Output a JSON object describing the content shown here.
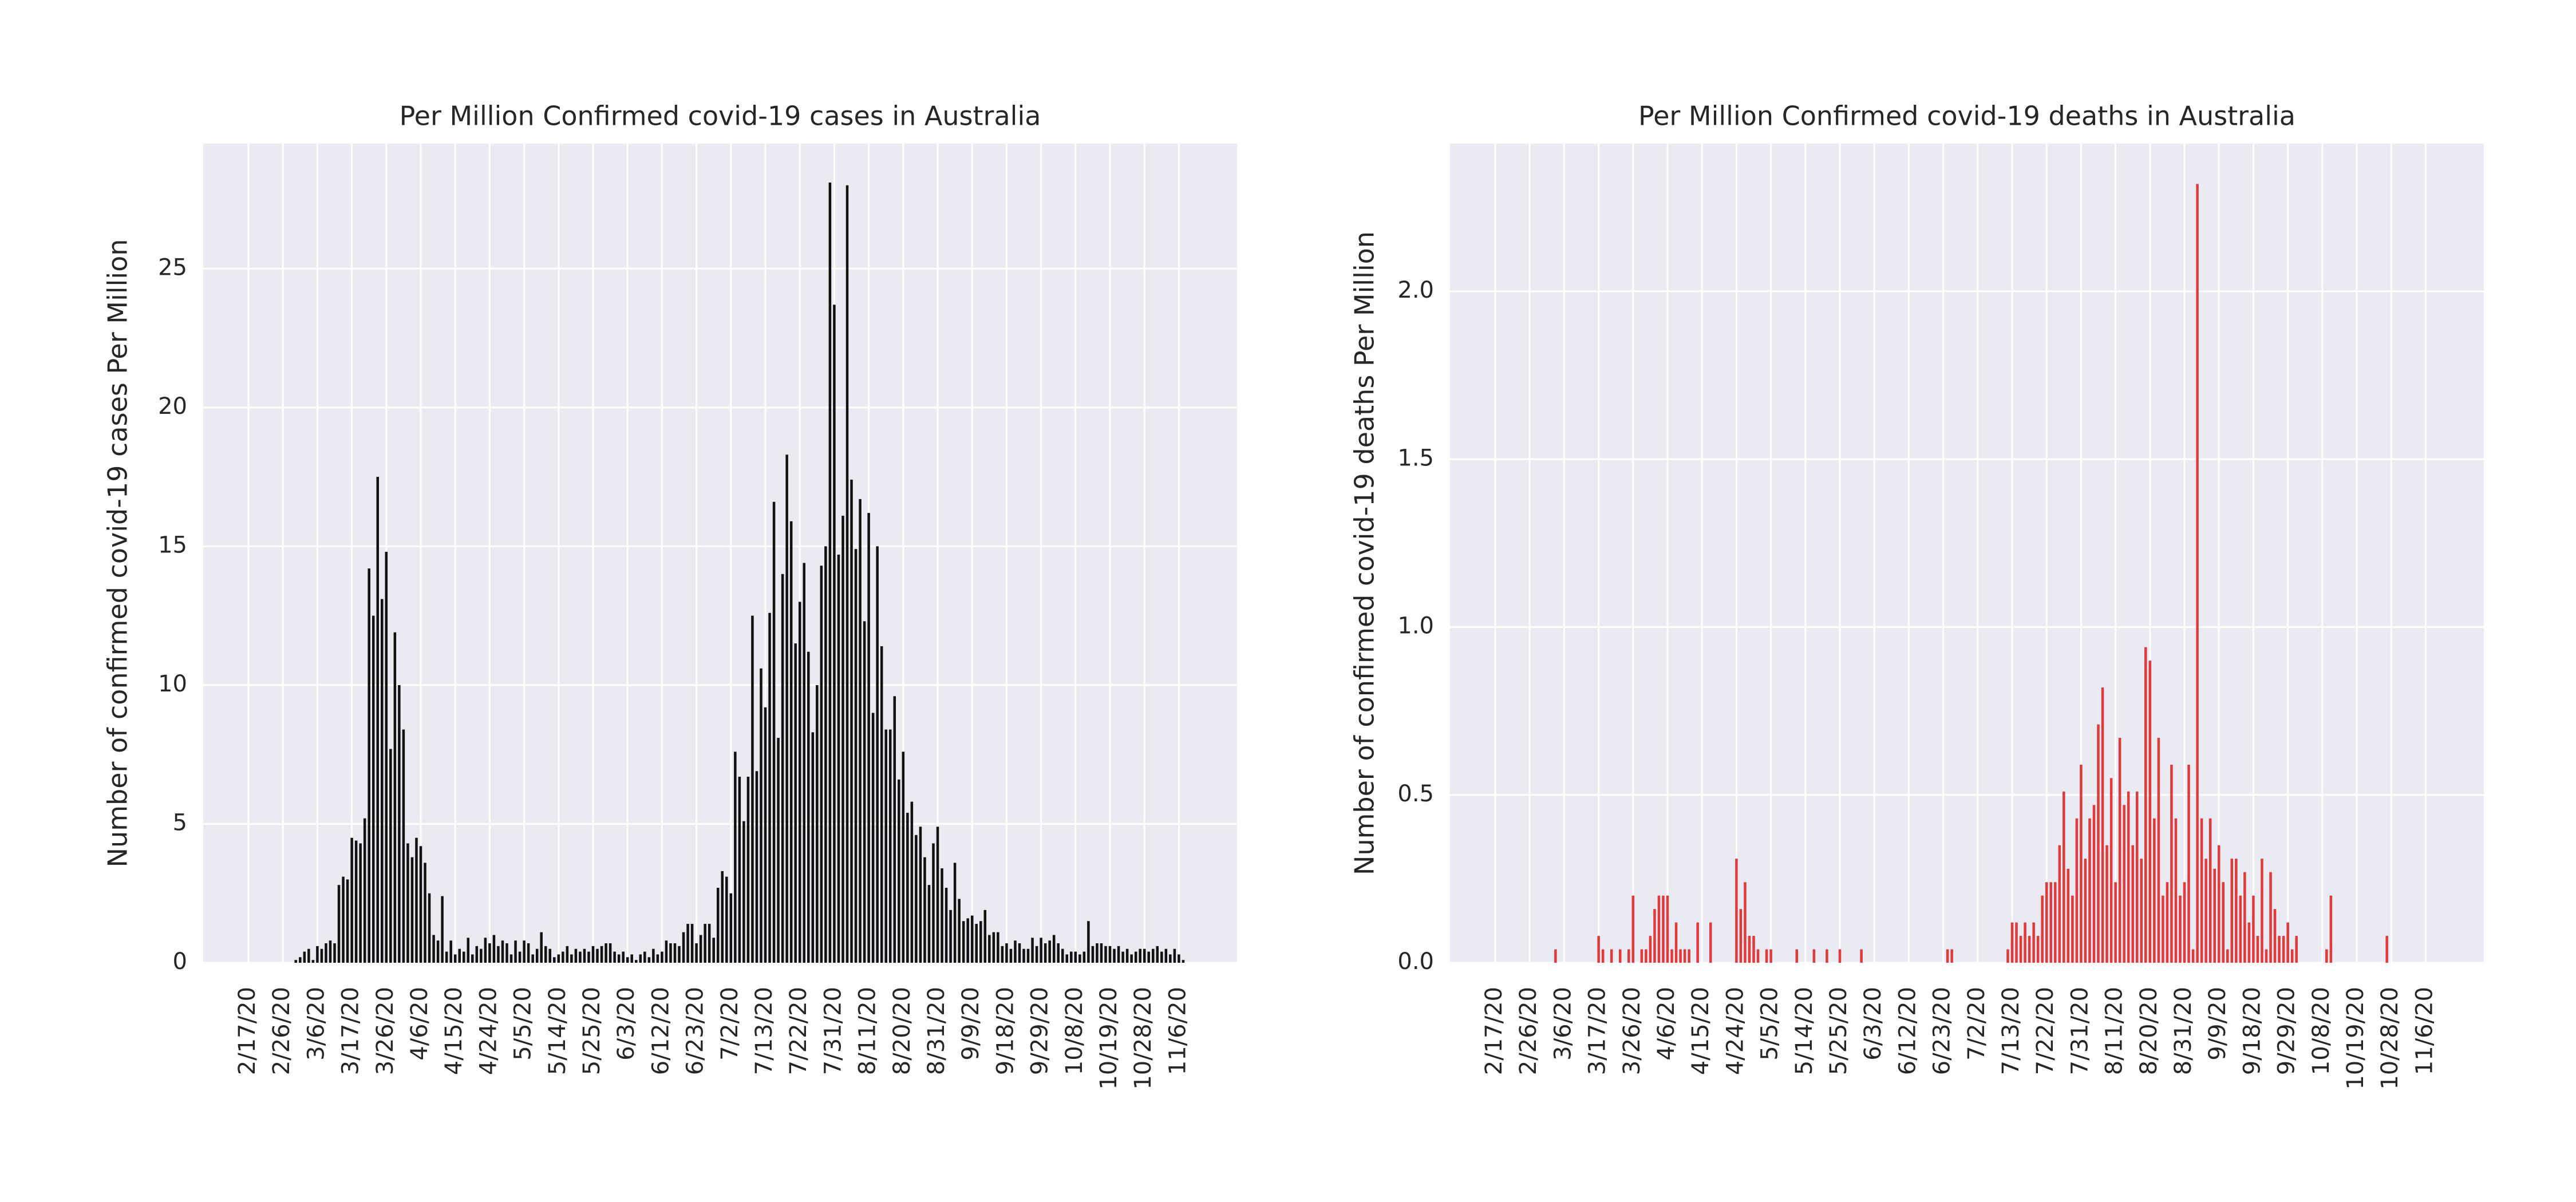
{
  "chart_data": [
    {
      "type": "bar",
      "title": "Per Million Confirmed covid-19 cases in Australia",
      "ylabel": "Number of confirmed covid-19 cases Per Million",
      "color": "#111111",
      "grid": true,
      "ylim": [
        0,
        29.5
      ],
      "yticks": [
        0,
        5,
        10,
        15,
        20,
        25
      ],
      "categories": [
        null,
        null,
        null,
        null,
        null,
        null,
        null,
        null,
        null,
        null,
        "2/17/20",
        null,
        null,
        null,
        null,
        null,
        null,
        null,
        "2/26/20",
        null,
        null,
        null,
        null,
        null,
        null,
        null,
        "3/6/20",
        null,
        null,
        null,
        null,
        null,
        null,
        null,
        "3/17/20",
        null,
        null,
        null,
        null,
        null,
        null,
        null,
        "3/26/20",
        null,
        null,
        null,
        null,
        null,
        null,
        null,
        "4/6/20",
        null,
        null,
        null,
        null,
        null,
        null,
        null,
        "4/15/20",
        null,
        null,
        null,
        null,
        null,
        null,
        null,
        "4/24/20",
        null,
        null,
        null,
        null,
        null,
        null,
        null,
        "5/5/20",
        null,
        null,
        null,
        null,
        null,
        null,
        null,
        "5/14/20",
        null,
        null,
        null,
        null,
        null,
        null,
        null,
        "5/25/20",
        null,
        null,
        null,
        null,
        null,
        null,
        null,
        "6/3/20",
        null,
        null,
        null,
        null,
        null,
        null,
        null,
        "6/12/20",
        null,
        null,
        null,
        null,
        null,
        null,
        null,
        "6/23/20",
        null,
        null,
        null,
        null,
        null,
        null,
        null,
        "7/2/20",
        null,
        null,
        null,
        null,
        null,
        null,
        null,
        "7/13/20",
        null,
        null,
        null,
        null,
        null,
        null,
        null,
        "7/22/20",
        null,
        null,
        null,
        null,
        null,
        null,
        null,
        "7/31/20",
        null,
        null,
        null,
        null,
        null,
        null,
        null,
        "8/11/20",
        null,
        null,
        null,
        null,
        null,
        null,
        null,
        "8/20/20",
        null,
        null,
        null,
        null,
        null,
        null,
        null,
        "8/31/20",
        null,
        null,
        null,
        null,
        null,
        null,
        null,
        "9/9/20",
        null,
        null,
        null,
        null,
        null,
        null,
        null,
        "9/18/20",
        null,
        null,
        null,
        null,
        null,
        null,
        null,
        "9/29/20",
        null,
        null,
        null,
        null,
        null,
        null,
        null,
        "10/8/20",
        null,
        null,
        null,
        null,
        null,
        null,
        null,
        "10/19/20",
        null,
        null,
        null,
        null,
        null,
        null,
        null,
        "10/28/20",
        null,
        null,
        null,
        null,
        null,
        null,
        null,
        "11/6/20",
        null,
        null,
        null,
        null,
        null,
        null,
        null,
        null,
        null,
        null,
        null,
        null,
        null
      ],
      "values": [
        0,
        0,
        0,
        0,
        0,
        0,
        0,
        0,
        0,
        0,
        0,
        0,
        0,
        0,
        0,
        0,
        0,
        0,
        0,
        0,
        0,
        0.1,
        0.2,
        0.4,
        0.5,
        0.1,
        0.6,
        0.5,
        0.7,
        0.8,
        0.7,
        2.8,
        3.1,
        3.0,
        4.5,
        4.4,
        4.3,
        5.2,
        14.2,
        12.5,
        17.5,
        13.1,
        14.8,
        7.7,
        11.9,
        10.0,
        8.4,
        4.3,
        3.8,
        4.5,
        4.2,
        3.6,
        2.5,
        1.0,
        0.8,
        2.4,
        0.4,
        0.8,
        0.3,
        0.5,
        0.4,
        0.9,
        0.3,
        0.6,
        0.5,
        0.9,
        0.7,
        1.0,
        0.6,
        0.8,
        0.7,
        0.3,
        0.8,
        0.4,
        0.8,
        0.7,
        0.3,
        0.5,
        1.1,
        0.6,
        0.5,
        0.2,
        0.3,
        0.4,
        0.6,
        0.3,
        0.5,
        0.4,
        0.5,
        0.4,
        0.6,
        0.5,
        0.6,
        0.7,
        0.7,
        0.4,
        0.3,
        0.4,
        0.2,
        0.3,
        0.1,
        0.3,
        0.4,
        0.2,
        0.5,
        0.3,
        0.4,
        0.8,
        0.7,
        0.7,
        0.6,
        1.1,
        1.4,
        1.4,
        0.7,
        1.0,
        1.4,
        1.4,
        0.9,
        2.7,
        3.3,
        3.1,
        2.5,
        7.6,
        6.7,
        5.1,
        6.7,
        12.5,
        6.9,
        10.6,
        9.2,
        12.6,
        16.6,
        8.1,
        14.0,
        18.3,
        15.9,
        11.5,
        13.0,
        14.4,
        11.2,
        8.3,
        10.0,
        14.3,
        15.0,
        28.1,
        23.7,
        14.7,
        16.1,
        28.0,
        17.4,
        14.9,
        16.7,
        12.3,
        16.2,
        9.0,
        15.0,
        11.4,
        8.4,
        8.4,
        9.6,
        6.6,
        7.6,
        5.4,
        5.8,
        4.6,
        4.9,
        3.8,
        2.8,
        4.3,
        4.9,
        3.4,
        2.7,
        1.9,
        3.6,
        2.3,
        1.5,
        1.6,
        1.7,
        1.4,
        1.5,
        1.9,
        1.0,
        1.1,
        1.1,
        0.6,
        0.7,
        0.5,
        0.8,
        0.7,
        0.5,
        0.5,
        0.9,
        0.6,
        0.9,
        0.7,
        0.8,
        1.0,
        0.7,
        0.5,
        0.3,
        0.4,
        0.4,
        0.3,
        0.4,
        1.5,
        0.6,
        0.7,
        0.7,
        0.6,
        0.6,
        0.5,
        0.6,
        0.4,
        0.5,
        0.3,
        0.4,
        0.5,
        0.5,
        0.4,
        0.5,
        0.6,
        0.4,
        0.5,
        0.3,
        0.5,
        0.3,
        0.1,
        0,
        0,
        0,
        0,
        0,
        0,
        0,
        0,
        0,
        0,
        0,
        0
      ]
    },
    {
      "type": "bar",
      "title": "Per Million Confirmed covid-19 deaths in Australia",
      "ylabel": "Number of confirmed covid-19 deaths Per Million",
      "color": "#e03a3a",
      "grid": true,
      "ylim": [
        0,
        2.44
      ],
      "yticks": [
        {
          "value": 0,
          "label": "0.0"
        },
        0.5,
        {
          "value": 1,
          "label": "1.0"
        },
        1.5,
        {
          "value": 2,
          "label": "2.0"
        }
      ],
      "categories": [
        null,
        null,
        null,
        null,
        null,
        null,
        null,
        null,
        null,
        null,
        "2/17/20",
        null,
        null,
        null,
        null,
        null,
        null,
        null,
        "2/26/20",
        null,
        null,
        null,
        null,
        null,
        null,
        null,
        "3/6/20",
        null,
        null,
        null,
        null,
        null,
        null,
        null,
        "3/17/20",
        null,
        null,
        null,
        null,
        null,
        null,
        null,
        "3/26/20",
        null,
        null,
        null,
        null,
        null,
        null,
        null,
        "4/6/20",
        null,
        null,
        null,
        null,
        null,
        null,
        null,
        "4/15/20",
        null,
        null,
        null,
        null,
        null,
        null,
        null,
        "4/24/20",
        null,
        null,
        null,
        null,
        null,
        null,
        null,
        "5/5/20",
        null,
        null,
        null,
        null,
        null,
        null,
        null,
        "5/14/20",
        null,
        null,
        null,
        null,
        null,
        null,
        null,
        "5/25/20",
        null,
        null,
        null,
        null,
        null,
        null,
        null,
        "6/3/20",
        null,
        null,
        null,
        null,
        null,
        null,
        null,
        "6/12/20",
        null,
        null,
        null,
        null,
        null,
        null,
        null,
        "6/23/20",
        null,
        null,
        null,
        null,
        null,
        null,
        null,
        "7/2/20",
        null,
        null,
        null,
        null,
        null,
        null,
        null,
        "7/13/20",
        null,
        null,
        null,
        null,
        null,
        null,
        null,
        "7/22/20",
        null,
        null,
        null,
        null,
        null,
        null,
        null,
        "7/31/20",
        null,
        null,
        null,
        null,
        null,
        null,
        null,
        "8/11/20",
        null,
        null,
        null,
        null,
        null,
        null,
        null,
        "8/20/20",
        null,
        null,
        null,
        null,
        null,
        null,
        null,
        "8/31/20",
        null,
        null,
        null,
        null,
        null,
        null,
        null,
        "9/9/20",
        null,
        null,
        null,
        null,
        null,
        null,
        null,
        "9/18/20",
        null,
        null,
        null,
        null,
        null,
        null,
        null,
        "9/29/20",
        null,
        null,
        null,
        null,
        null,
        null,
        null,
        "10/8/20",
        null,
        null,
        null,
        null,
        null,
        null,
        null,
        "10/19/20",
        null,
        null,
        null,
        null,
        null,
        null,
        null,
        "10/28/20",
        null,
        null,
        null,
        null,
        null,
        null,
        null,
        "11/6/20",
        null,
        null,
        null,
        null,
        null,
        null,
        null,
        null,
        null,
        null,
        null,
        null,
        null
      ],
      "values": [
        0,
        0,
        0,
        0,
        0,
        0,
        0,
        0,
        0,
        0,
        0,
        0,
        0,
        0,
        0,
        0,
        0,
        0,
        0,
        0,
        0,
        0,
        0,
        0,
        0.04,
        0,
        0,
        0,
        0,
        0,
        0,
        0,
        0,
        0,
        0.08,
        0.04,
        0,
        0.04,
        0,
        0.04,
        0,
        0.04,
        0.2,
        0,
        0.04,
        0.04,
        0.08,
        0.16,
        0.2,
        0.2,
        0.2,
        0.04,
        0.12,
        0.04,
        0.04,
        0.04,
        0,
        0.12,
        0,
        0,
        0.12,
        0,
        0,
        0,
        0,
        0,
        0.31,
        0.16,
        0.24,
        0.08,
        0.08,
        0.04,
        0,
        0.04,
        0.04,
        0,
        0,
        0,
        0,
        0,
        0.04,
        0,
        0,
        0,
        0.04,
        0,
        0,
        0.04,
        0,
        0,
        0.04,
        0,
        0,
        0,
        0,
        0.04,
        0,
        0,
        0,
        0,
        0,
        0,
        0,
        0,
        0,
        0,
        0,
        0,
        0,
        0,
        0,
        0,
        0,
        0,
        0,
        0.04,
        0.04,
        0,
        0,
        0,
        0,
        0,
        0,
        0,
        0,
        0,
        0,
        0,
        0,
        0.04,
        0.12,
        0.12,
        0.08,
        0.12,
        0.08,
        0.12,
        0.08,
        0.2,
        0.24,
        0.24,
        0.24,
        0.35,
        0.51,
        0.28,
        0.2,
        0.43,
        0.59,
        0.31,
        0.43,
        0.47,
        0.71,
        0.82,
        0.35,
        0.55,
        0.24,
        0.67,
        0.47,
        0.51,
        0.35,
        0.51,
        0.31,
        0.94,
        0.9,
        0.43,
        0.67,
        0.2,
        0.24,
        0.59,
        0.43,
        0.2,
        0.24,
        0.59,
        0.04,
        2.32,
        0.43,
        0.31,
        0.43,
        0.28,
        0.35,
        0.24,
        0.04,
        0.31,
        0.31,
        0.2,
        0.27,
        0.12,
        0.2,
        0.08,
        0.31,
        0.04,
        0.27,
        0.16,
        0.08,
        0.08,
        0.12,
        0.04,
        0.08,
        0,
        0,
        0,
        0,
        0,
        0,
        0.04,
        0.2,
        0,
        0,
        0,
        0,
        0,
        0,
        0,
        0,
        0,
        0,
        0,
        0,
        0.08,
        0,
        0,
        0,
        0,
        0,
        0,
        0,
        0,
        0,
        0,
        0,
        0,
        0,
        0,
        0,
        0,
        0,
        0,
        0,
        0,
        0,
        0
      ]
    }
  ]
}
